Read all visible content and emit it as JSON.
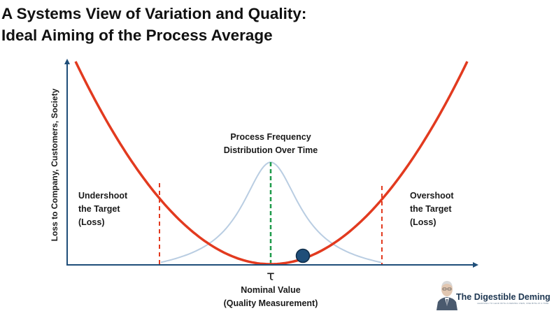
{
  "title": {
    "line1": "A Systems View of Variation and Quality:",
    "line2": "Ideal Aiming of the Process Average"
  },
  "diagram": {
    "y_axis_label": "Loss to Company, Customers, Society",
    "distribution_label_line1": "Process Frequency",
    "distribution_label_line2": "Distribution Over Time",
    "undershoot_line1": "Undershoot",
    "undershoot_line2": "the Target",
    "undershoot_line3": "(Loss)",
    "overshoot_line1": "Overshoot",
    "overshoot_line2": "the Target",
    "overshoot_line3": "(Loss)",
    "target_symbol": "τ",
    "x_label_line1": "Nominal Value",
    "x_label_line2": "(Quality Measurement)"
  },
  "brand": {
    "name": "The Digestible Deming",
    "tagline": "LEARNING TO LEAD WITH A DEMING VIEW, ONE BITE AT A TIME"
  },
  "colors": {
    "loss_curve": "#e23a1f",
    "distribution_curve": "#b9cde2",
    "axis": "#1f4e79",
    "target_line": "#1e9a4a",
    "spec_lines": "#e23a1f",
    "process_average_marker": "#1f4e79"
  }
}
